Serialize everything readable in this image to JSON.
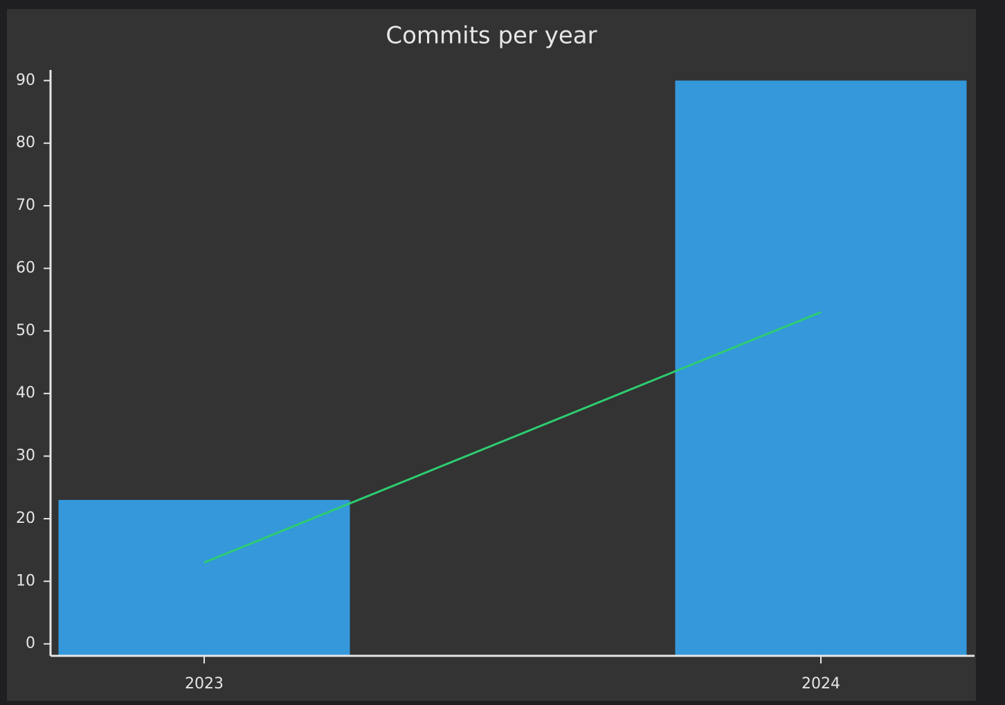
{
  "chart_data": {
    "type": "bar",
    "title": "Commits per year",
    "categories": [
      "2023",
      "2024"
    ],
    "series": [
      {
        "type": "bar",
        "color": "#3498db",
        "values": [
          23,
          90
        ]
      },
      {
        "type": "line",
        "color": "#2ecc71",
        "values": [
          13,
          53
        ]
      }
    ],
    "ylim": [
      -1.8,
      91.7
    ],
    "yticks": [
      0,
      10,
      20,
      30,
      40,
      50,
      60,
      70,
      80,
      90
    ]
  }
}
